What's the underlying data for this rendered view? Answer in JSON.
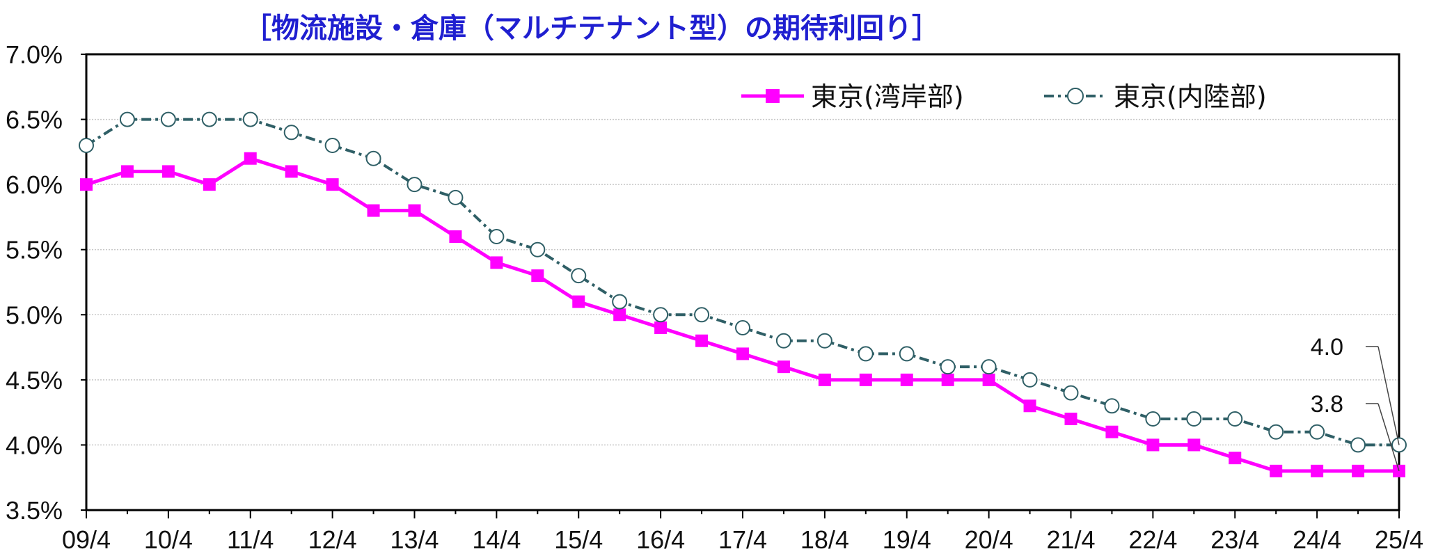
{
  "chart_data": {
    "type": "line",
    "title": "［物流施設・倉庫（マルチテナント型）の期待利回り］",
    "xlabel": "",
    "ylabel": "",
    "ylim": [
      3.5,
      7.0
    ],
    "yticks": [
      "3.5%",
      "4.0%",
      "4.5%",
      "5.0%",
      "5.5%",
      "6.0%",
      "6.5%",
      "7.0%"
    ],
    "x_tick_labels": [
      "09/4",
      "10/4",
      "11/4",
      "12/4",
      "13/4",
      "14/4",
      "15/4",
      "16/4",
      "17/4",
      "18/4",
      "19/4",
      "20/4",
      "21/4",
      "22/4",
      "23/4",
      "24/4",
      "25/4"
    ],
    "x": [
      "09/4",
      "09/10",
      "10/4",
      "10/10",
      "11/4",
      "11/10",
      "12/4",
      "12/10",
      "13/4",
      "13/10",
      "14/4",
      "14/10",
      "15/4",
      "15/10",
      "16/4",
      "16/10",
      "17/4",
      "17/10",
      "18/4",
      "18/10",
      "19/4",
      "19/10",
      "20/4",
      "20/10",
      "21/4",
      "21/10",
      "22/4",
      "22/10",
      "23/4",
      "23/10",
      "24/4",
      "24/10",
      "25/4"
    ],
    "grid": true,
    "legend_position": "top-right",
    "series": [
      {
        "name": "東京(湾岸部)",
        "color": "#ff00ff",
        "marker": "filled-square",
        "line": "solid",
        "values": [
          6.0,
          6.1,
          6.1,
          6.0,
          6.2,
          6.1,
          6.0,
          5.8,
          5.8,
          5.6,
          5.4,
          5.3,
          5.1,
          5.0,
          4.9,
          4.8,
          4.7,
          4.6,
          4.5,
          4.5,
          4.5,
          4.5,
          4.5,
          4.3,
          4.2,
          4.1,
          4.0,
          4.0,
          3.9,
          3.8,
          3.8,
          3.8,
          3.8
        ]
      },
      {
        "name": "東京(内陸部)",
        "color": "#2f5f66",
        "marker": "open-circle",
        "line": "dash-dot",
        "values": [
          6.3,
          6.5,
          6.5,
          6.5,
          6.5,
          6.4,
          6.3,
          6.2,
          6.0,
          5.9,
          5.6,
          5.5,
          5.3,
          5.1,
          5.0,
          5.0,
          4.9,
          4.8,
          4.8,
          4.7,
          4.7,
          4.6,
          4.6,
          4.5,
          4.4,
          4.3,
          4.2,
          4.2,
          4.2,
          4.1,
          4.1,
          4.0,
          4.0
        ]
      }
    ],
    "annotations": [
      {
        "text": "4.0",
        "series": "東京(内陸部)",
        "x": "25/4",
        "y": 4.0
      },
      {
        "text": "3.8",
        "series": "東京(湾岸部)",
        "x": "25/4",
        "y": 3.8
      }
    ]
  }
}
